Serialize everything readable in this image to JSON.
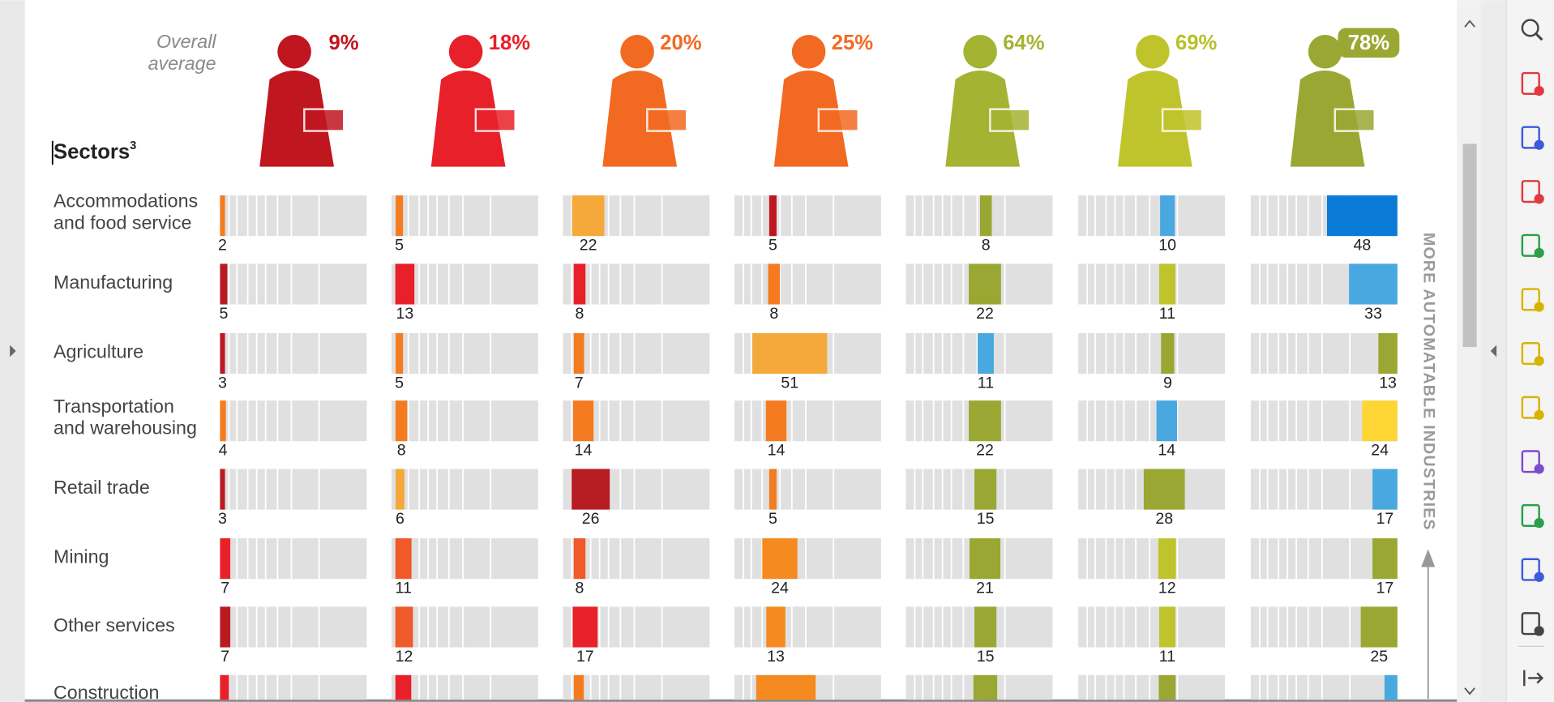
{
  "viewer": {
    "tools": [
      "zoom",
      "create-pdf",
      "export-pdf",
      "organize",
      "edit-pdf",
      "compare",
      "request-signature",
      "comment",
      "fill-sign",
      "scan",
      "protect",
      "more-tools",
      "expand"
    ]
  },
  "chart": {
    "overall_label": [
      "Overall",
      "average"
    ],
    "sectors_heading": "Sectors",
    "sectors_note": "3",
    "side_label": "MORE AUTOMATABLE INDUSTRIES",
    "columns": [
      {
        "label": "9%",
        "color": "#c0161f",
        "text_color": "#c0161f"
      },
      {
        "label": "18%",
        "color": "#e8202a",
        "text_color": "#e8202a"
      },
      {
        "label": "20%",
        "color": "#f26a22",
        "text_color": "#f26a22"
      },
      {
        "label": "25%",
        "color": "#f26a22",
        "text_color": "#f26a22"
      },
      {
        "label": "64%",
        "color": "#a4b331",
        "text_color": "#a4b331"
      },
      {
        "label": "69%",
        "color": "#c0c42c",
        "text_color": "#b8c02a"
      },
      {
        "label": "78%",
        "color": "#9aa833",
        "text_color": "#ffffff"
      }
    ],
    "rows": [
      {
        "name": [
          "Accommodations",
          "and food service"
        ],
        "values": [
          2,
          5,
          22,
          5,
          8,
          10,
          48
        ],
        "colors": [
          "#f47b20",
          "#f47b20",
          "#f5a93a",
          "#c0161f",
          "#9aa833",
          "#4aa8e0",
          "#0a7bd6"
        ]
      },
      {
        "name": [
          "Manufacturing"
        ],
        "values": [
          5,
          13,
          8,
          8,
          22,
          11,
          33
        ],
        "colors": [
          "#b71c22",
          "#e8202a",
          "#e8202a",
          "#f47b20",
          "#9aa833",
          "#c0c42c",
          "#4aa8e0"
        ]
      },
      {
        "name": [
          "Agriculture"
        ],
        "values": [
          3,
          5,
          7,
          51,
          11,
          9,
          13
        ],
        "colors": [
          "#b71c22",
          "#f47b20",
          "#f47b20",
          "#f5a93a",
          "#4aa8e0",
          "#9aa833",
          "#9aa833"
        ]
      },
      {
        "name": [
          "Transportation",
          "and warehousing"
        ],
        "values": [
          4,
          8,
          14,
          14,
          22,
          14,
          24
        ],
        "colors": [
          "#f47b20",
          "#f47b20",
          "#f47b20",
          "#f47b20",
          "#9aa833",
          "#4aa8e0",
          "#fdd535"
        ]
      },
      {
        "name": [
          "Retail trade"
        ],
        "values": [
          3,
          6,
          26,
          5,
          15,
          28,
          17
        ],
        "colors": [
          "#b71c22",
          "#f5a93a",
          "#b71c22",
          "#f47b20",
          "#9aa833",
          "#9aa833",
          "#4aa8e0"
        ]
      },
      {
        "name": [
          "Mining"
        ],
        "values": [
          7,
          11,
          8,
          24,
          21,
          12,
          17
        ],
        "colors": [
          "#e8202a",
          "#f0592a",
          "#f0592a",
          "#f58a20",
          "#9aa833",
          "#c0c42c",
          "#9aa833"
        ]
      },
      {
        "name": [
          "Other services"
        ],
        "values": [
          7,
          12,
          17,
          13,
          15,
          11,
          25
        ],
        "colors": [
          "#b71c22",
          "#f0592a",
          "#e8202a",
          "#f58a20",
          "#9aa833",
          "#c0c42c",
          "#9aa833"
        ]
      }
    ],
    "partial_row": {
      "name": "Construction",
      "colors": [
        "#e8202a",
        "#e8202a",
        "#f47b20",
        "#f58a20",
        "#9aa833",
        "#9aa833",
        "#4aa8e0"
      ]
    }
  }
}
